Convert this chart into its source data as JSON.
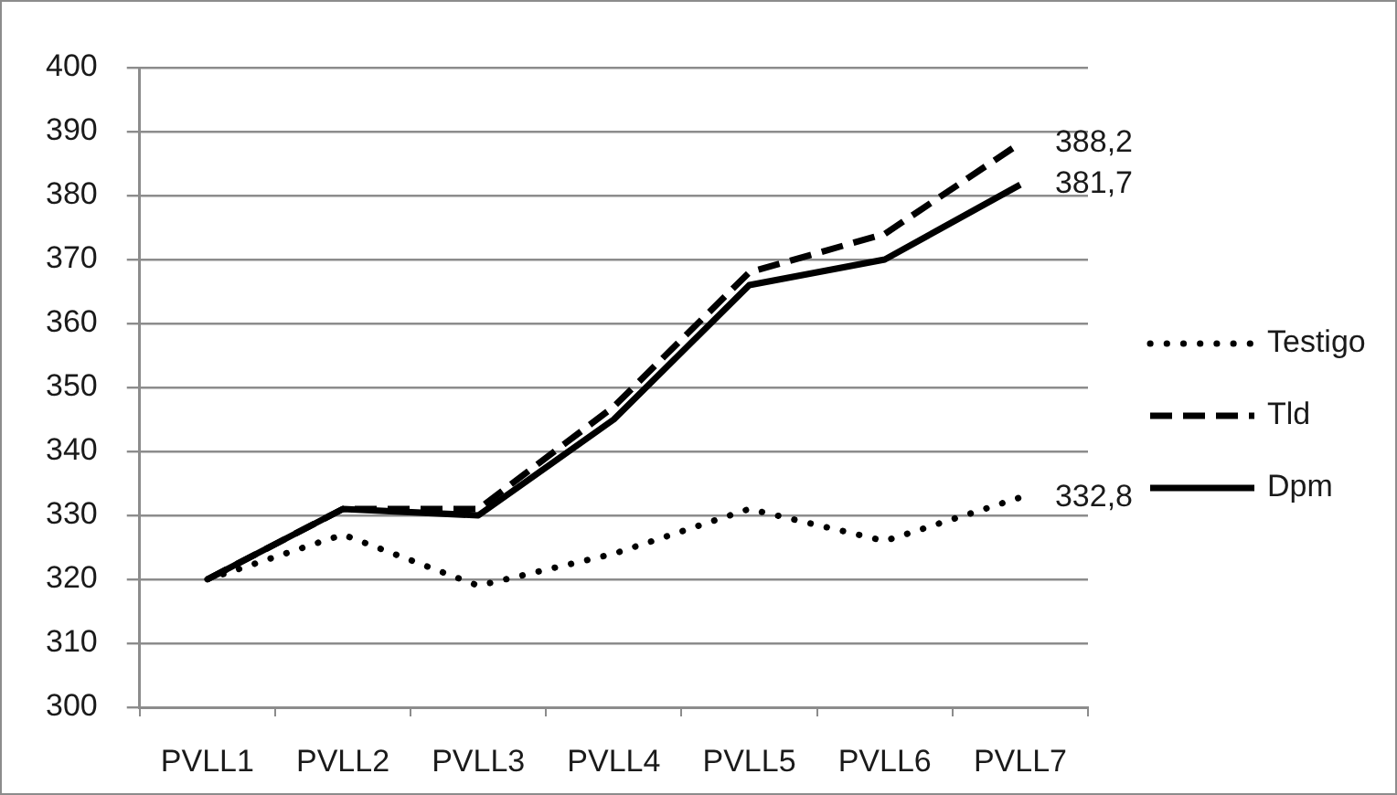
{
  "chart_data": {
    "type": "line",
    "categories": [
      "PVLL1",
      "PVLL2",
      "PVLL3",
      "PVLL4",
      "PVLL5",
      "PVLL6",
      "PVLL7"
    ],
    "series": [
      {
        "name": "Testigo",
        "color": "#000000",
        "line_style": "dotted",
        "values": [
          320,
          327,
          319,
          324,
          331,
          326,
          332.8
        ],
        "value_labels": [
          null,
          null,
          null,
          null,
          null,
          null,
          "332,8"
        ]
      },
      {
        "name": "Tld",
        "color": "#000000",
        "line_style": "dashed",
        "values": [
          320,
          331,
          331,
          347,
          368,
          374,
          388.2
        ],
        "value_labels": [
          null,
          null,
          null,
          null,
          null,
          null,
          "388,2"
        ]
      },
      {
        "name": "Dpm",
        "color": "#000000",
        "line_style": "solid",
        "values": [
          320,
          331,
          330,
          345,
          366,
          370,
          381.7
        ],
        "value_labels": [
          null,
          null,
          null,
          null,
          null,
          null,
          "381,7"
        ]
      }
    ],
    "ylim": [
      300,
      400
    ],
    "yticks": [
      300,
      310,
      320,
      330,
      340,
      350,
      360,
      370,
      380,
      390,
      400
    ],
    "grid": "y",
    "legend": "right",
    "marker": "none"
  }
}
